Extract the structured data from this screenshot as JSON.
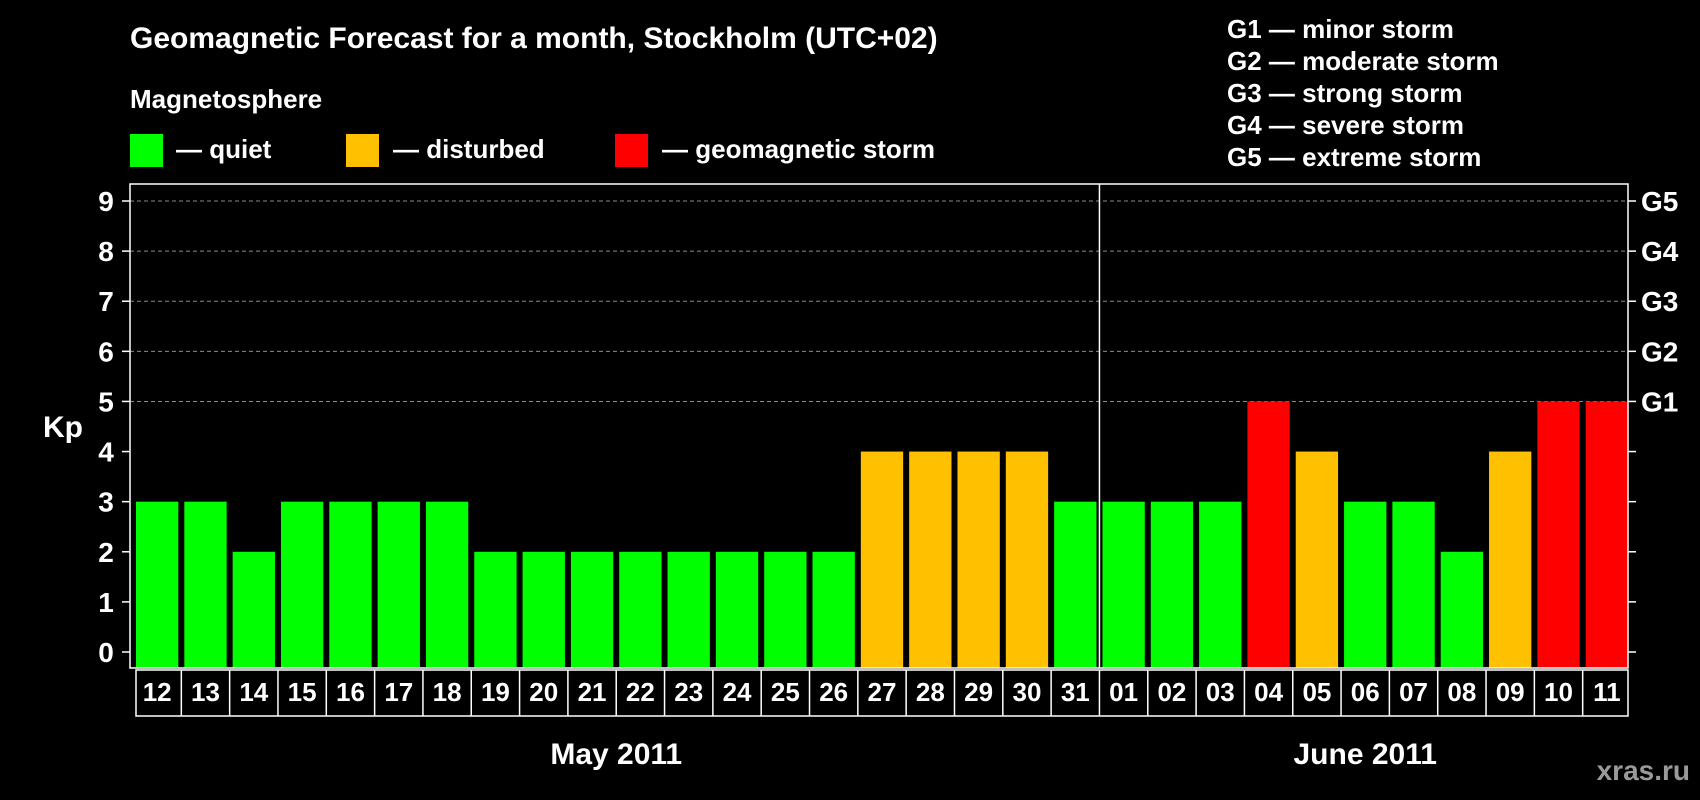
{
  "title": "Geomagnetic Forecast for a month, Stockholm (UTC+02)",
  "legend": {
    "heading": "Magnetosphere",
    "items": [
      {
        "label": "— quiet",
        "color": "#00ff00"
      },
      {
        "label": "— disturbed",
        "color": "#ffc000"
      },
      {
        "label": "— geomagnetic storm",
        "color": "#ff0000"
      }
    ]
  },
  "storm_scale": [
    "G1 — minor storm",
    "G2 — moderate storm",
    "G3 — strong storm",
    "G4 — severe storm",
    "G5 — extreme storm"
  ],
  "watermark": "xras.ru",
  "chart_data": {
    "type": "bar",
    "ylabel": "Kp",
    "ylim": [
      0,
      9
    ],
    "yticks": [
      "0",
      "1",
      "2",
      "3",
      "4",
      "5",
      "6",
      "7",
      "8",
      "9"
    ],
    "right_axis": [
      {
        "value": 5,
        "label": "G1"
      },
      {
        "value": 6,
        "label": "G2"
      },
      {
        "value": 7,
        "label": "G3"
      },
      {
        "value": 8,
        "label": "G4"
      },
      {
        "value": 9,
        "label": "G5"
      }
    ],
    "grid": "horizontal dashed above Kp 5",
    "categories": [
      "12",
      "13",
      "14",
      "15",
      "16",
      "17",
      "18",
      "19",
      "20",
      "21",
      "22",
      "23",
      "24",
      "25",
      "26",
      "27",
      "28",
      "29",
      "30",
      "31",
      "01",
      "02",
      "03",
      "04",
      "05",
      "06",
      "07",
      "08",
      "09",
      "10",
      "11"
    ],
    "values": [
      3,
      3,
      2,
      3,
      3,
      3,
      3,
      2,
      2,
      2,
      2,
      2,
      2,
      2,
      2,
      4,
      4,
      4,
      4,
      3,
      3,
      3,
      3,
      5,
      4,
      3,
      3,
      2,
      4,
      5,
      5
    ],
    "colors": [
      "#00ff00",
      "#00ff00",
      "#00ff00",
      "#00ff00",
      "#00ff00",
      "#00ff00",
      "#00ff00",
      "#00ff00",
      "#00ff00",
      "#00ff00",
      "#00ff00",
      "#00ff00",
      "#00ff00",
      "#00ff00",
      "#00ff00",
      "#ffc000",
      "#ffc000",
      "#ffc000",
      "#ffc000",
      "#00ff00",
      "#00ff00",
      "#00ff00",
      "#00ff00",
      "#ff0000",
      "#ffc000",
      "#00ff00",
      "#00ff00",
      "#00ff00",
      "#ffc000",
      "#ff0000",
      "#ff0000"
    ],
    "months": [
      {
        "label": "May 2011",
        "first_index": 0,
        "last_index": 19
      },
      {
        "label": "June 2011",
        "first_index": 20,
        "last_index": 30
      }
    ]
  }
}
